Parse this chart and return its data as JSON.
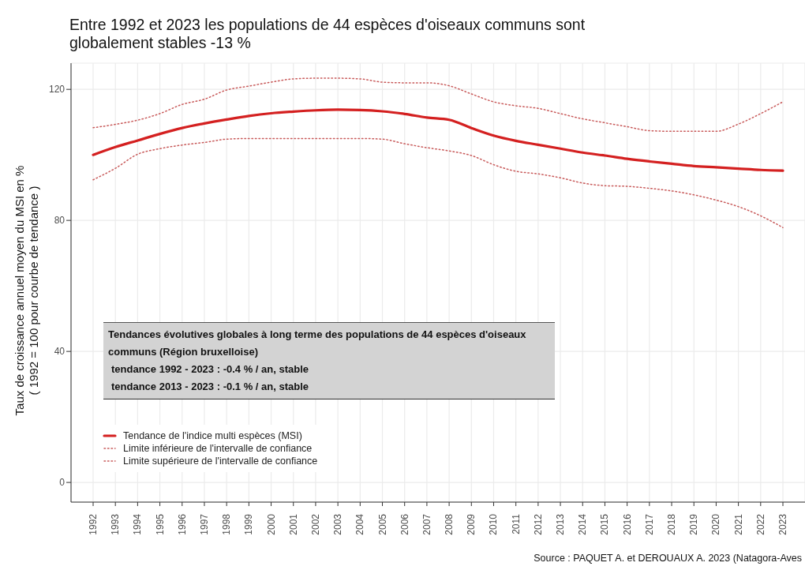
{
  "chart_data": {
    "type": "line",
    "title": "Entre 1992 et 2023 les populations de 44 espèces d'oiseaux communs sont globalement stables -13 %",
    "ylabel": "Taux de croissance annuel moyen du MSI en %\n( 1992 = 100 pour courbe de tendance )",
    "categories": [
      "1992",
      "1993",
      "1994",
      "1995",
      "1996",
      "1997",
      "1998",
      "1999",
      "2000",
      "2001",
      "2002",
      "2003",
      "2004",
      "2005",
      "2006",
      "2007",
      "2008",
      "2009",
      "2010",
      "2011",
      "2012",
      "2013",
      "2014",
      "2015",
      "2016",
      "2017",
      "2018",
      "2019",
      "2020",
      "2021",
      "2022",
      "2023"
    ],
    "series": [
      {
        "name": "Tendance de l'indice multi espèces (MSI)",
        "color": "#d42020",
        "line_style": "solid",
        "values": [
          100,
          102.4,
          104.4,
          106.4,
          108.2,
          109.6,
          110.8,
          111.9,
          112.7,
          113.2,
          113.6,
          113.8,
          113.7,
          113.3,
          112.5,
          111.4,
          110.7,
          108.2,
          105.9,
          104.3,
          103.1,
          101.9,
          100.7,
          99.8,
          98.8,
          98,
          97.3,
          96.6,
          96.2,
          95.8,
          95.4,
          95.2
        ]
      },
      {
        "name": "Limite inférieure de l'intervalle de confiance",
        "color": "#c85a5a",
        "line_style": "dotted",
        "values": [
          92.4,
          95.9,
          100.2,
          101.9,
          103,
          103.8,
          104.8,
          105,
          105,
          105,
          105,
          105,
          105,
          104.8,
          103.4,
          102.2,
          101.2,
          99.8,
          97,
          95,
          94.2,
          93,
          91.4,
          90.6,
          90.4,
          89.8,
          89,
          87.8,
          86.2,
          84.2,
          81.4,
          77.8
        ]
      },
      {
        "name": "Limite supérieure de l'intervalle de confiance",
        "color": "#c85a5a",
        "line_style": "dotted",
        "values": [
          108.3,
          109.3,
          110.6,
          112.6,
          115.4,
          117,
          119.8,
          121,
          122.2,
          123.2,
          123.4,
          123.4,
          123.2,
          122.2,
          122,
          122,
          121.1,
          118.6,
          116.2,
          115,
          114.2,
          112.6,
          111,
          109.8,
          108.6,
          107.4,
          107.2,
          107.2,
          107.2,
          109.4,
          112.6,
          116.2
        ]
      }
    ],
    "ylim": [
      -6,
      128
    ],
    "yticks": [
      0,
      40,
      80,
      120
    ],
    "grid": true,
    "legend": "bottom left",
    "marker": "none",
    "annotations": [
      "Tendances évolutives globales à long terme des populations de 44 espèces d'oiseaux communs (Région bruxelloise)",
      "tendance 1992 - 2023 : -0.4 % / an, stable",
      "tendance 2013 - 2023 : -0.1 % / an, stable",
      "Source : PAQUET A. et DEROUAUX A. 2023 (Natagora-Aves"
    ]
  }
}
